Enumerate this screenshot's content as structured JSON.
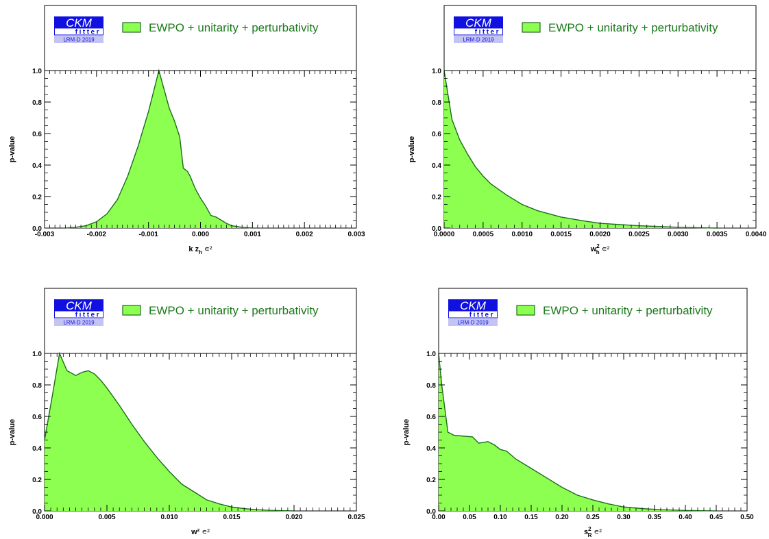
{
  "colors": {
    "fill": "#8cff50",
    "stroke": "#1d6b1d",
    "legend_text": "#1a7a1a",
    "logo_blue": "#1010e0",
    "logo_sub_bg": "#c4c4f4"
  },
  "chart_data": [
    {
      "type": "area",
      "ylabel": "p-value",
      "xlabel": "k z_h ∊²",
      "xlabel_parts": {
        "main": "k z",
        "sub": "h",
        "suffix": " ∊²"
      },
      "xlim": [
        -0.003,
        0.003
      ],
      "ylim": [
        0,
        1
      ],
      "xticks": [
        -0.003,
        -0.002,
        -0.001,
        0.0,
        0.001,
        0.002,
        0.003
      ],
      "xtick_labels": [
        "-0.003",
        "-0.002",
        "-0.001",
        "0.000",
        "0.001",
        "0.002",
        "0.003"
      ],
      "yticks": [
        0,
        0.2,
        0.4,
        0.6,
        0.8,
        1.0
      ],
      "ytick_labels": [
        "0.0",
        "0.2",
        "0.4",
        "0.6",
        "0.8",
        "1.0"
      ],
      "legend": "EWPO + unitarity + perturbativity",
      "logo": {
        "main": "CKM",
        "sub1": "fitter",
        "sub2": "LRM-D 2019"
      },
      "series": [
        {
          "name": "EWPO + unitarity + perturbativity",
          "x": [
            -0.0026,
            -0.0024,
            -0.0022,
            -0.002,
            -0.0018,
            -0.0016,
            -0.0014,
            -0.0012,
            -0.001,
            -0.0008,
            -0.0007,
            -0.0006,
            -0.0005,
            -0.0004,
            -0.00033,
            -0.00025,
            -0.0002,
            -0.0001,
            0.0,
            0.0001,
            0.0002,
            0.0003,
            0.0004,
            0.0005,
            0.0006,
            0.0008,
            0.001
          ],
          "y": [
            0.0,
            0.005,
            0.015,
            0.04,
            0.09,
            0.18,
            0.33,
            0.52,
            0.74,
            1.0,
            0.88,
            0.76,
            0.68,
            0.58,
            0.38,
            0.36,
            0.33,
            0.25,
            0.19,
            0.14,
            0.08,
            0.07,
            0.05,
            0.03,
            0.015,
            0.005,
            0.0
          ]
        }
      ]
    },
    {
      "type": "area",
      "ylabel": "p-value",
      "xlabel": "w_h² ∊²",
      "xlabel_parts": {
        "main": "w",
        "sub": "h",
        "sup": "2",
        "suffix": " ∊²"
      },
      "xlim": [
        0,
        0.004
      ],
      "ylim": [
        0,
        1
      ],
      "xticks": [
        0,
        0.0005,
        0.001,
        0.0015,
        0.002,
        0.0025,
        0.003,
        0.0035,
        0.004
      ],
      "xtick_labels": [
        "0.0000",
        "0.0005",
        "0.0010",
        "0.0015",
        "0.0020",
        "0.0025",
        "0.0030",
        "0.0035",
        "0.0040"
      ],
      "yticks": [
        0,
        0.2,
        0.4,
        0.6,
        0.8,
        1.0
      ],
      "ytick_labels": [
        "0.0",
        "0.2",
        "0.4",
        "0.6",
        "0.8",
        "1.0"
      ],
      "legend": "EWPO + unitarity + perturbativity",
      "logo": {
        "main": "CKM",
        "sub1": "fitter",
        "sub2": "LRM-D 2019"
      },
      "series": [
        {
          "name": "EWPO + unitarity + perturbativity",
          "x": [
            0,
            0.0001,
            0.0002,
            0.0003,
            0.0004,
            0.0005,
            0.0006,
            0.0008,
            0.001,
            0.0012,
            0.0015,
            0.0018,
            0.002,
            0.0025,
            0.003,
            0.0035
          ],
          "y": [
            1.0,
            0.69,
            0.56,
            0.47,
            0.39,
            0.33,
            0.28,
            0.21,
            0.15,
            0.11,
            0.07,
            0.045,
            0.03,
            0.015,
            0.005,
            0.0
          ]
        }
      ]
    },
    {
      "type": "area",
      "ylabel": "p-value",
      "xlabel": "w² ∊²",
      "xlabel_parts": {
        "main": "w²",
        "suffix": " ∊²"
      },
      "xlim": [
        0,
        0.025
      ],
      "ylim": [
        0,
        1
      ],
      "xticks": [
        0,
        0.005,
        0.01,
        0.015,
        0.02,
        0.025
      ],
      "xtick_labels": [
        "0.000",
        "0.005",
        "0.010",
        "0.015",
        "0.020",
        "0.025"
      ],
      "yticks": [
        0,
        0.2,
        0.4,
        0.6,
        0.8,
        1.0
      ],
      "ytick_labels": [
        "0.0",
        "0.2",
        "0.4",
        "0.6",
        "0.8",
        "1.0"
      ],
      "legend": "EWPO + unitarity + perturbativity",
      "logo": {
        "main": "CKM",
        "sub1": "fitter",
        "sub2": "LRM-D 2019"
      },
      "series": [
        {
          "name": "EWPO + unitarity + perturbativity",
          "x": [
            0,
            0.0006,
            0.0012,
            0.0018,
            0.0025,
            0.003,
            0.0035,
            0.004,
            0.0045,
            0.005,
            0.006,
            0.007,
            0.008,
            0.009,
            0.01,
            0.011,
            0.012,
            0.013,
            0.014,
            0.015,
            0.016,
            0.017,
            0.018,
            0.019,
            0.02
          ],
          "y": [
            0.45,
            0.72,
            1.0,
            0.89,
            0.86,
            0.88,
            0.89,
            0.87,
            0.83,
            0.78,
            0.67,
            0.55,
            0.44,
            0.34,
            0.25,
            0.17,
            0.12,
            0.07,
            0.045,
            0.025,
            0.015,
            0.008,
            0.004,
            0.002,
            0.0
          ]
        }
      ]
    },
    {
      "type": "area",
      "ylabel": "p-value",
      "xlabel": "s_R² ∊²",
      "xlabel_parts": {
        "main": "s",
        "sub": "R",
        "sup": "2",
        "suffix": " ∊²"
      },
      "xlim": [
        0,
        0.5
      ],
      "ylim": [
        0,
        1
      ],
      "xticks": [
        0,
        0.05,
        0.1,
        0.15,
        0.2,
        0.25,
        0.3,
        0.35,
        0.4,
        0.45,
        0.5
      ],
      "xtick_labels": [
        "0.00",
        "0.05",
        "0.10",
        "0.15",
        "0.20",
        "0.25",
        "0.30",
        "0.35",
        "0.40",
        "0.45",
        "0.50"
      ],
      "yticks": [
        0,
        0.2,
        0.4,
        0.6,
        0.8,
        1.0
      ],
      "ytick_labels": [
        "0.0",
        "0.2",
        "0.4",
        "0.6",
        "0.8",
        "1.0"
      ],
      "legend": "EWPO + unitarity + perturbativity",
      "logo": {
        "main": "CKM",
        "sub1": "fitter",
        "sub2": "LRM-D 2019"
      },
      "series": [
        {
          "name": "EWPO + unitarity + perturbativity",
          "x": [
            0,
            0.005,
            0.015,
            0.025,
            0.04,
            0.055,
            0.065,
            0.08,
            0.09,
            0.1,
            0.11,
            0.125,
            0.15,
            0.175,
            0.2,
            0.225,
            0.25,
            0.275,
            0.3,
            0.33,
            0.36,
            0.4,
            0.45
          ],
          "y": [
            1.0,
            0.8,
            0.5,
            0.48,
            0.475,
            0.47,
            0.43,
            0.44,
            0.42,
            0.39,
            0.38,
            0.33,
            0.27,
            0.21,
            0.15,
            0.1,
            0.07,
            0.045,
            0.025,
            0.015,
            0.008,
            0.003,
            0.0
          ]
        }
      ]
    }
  ]
}
